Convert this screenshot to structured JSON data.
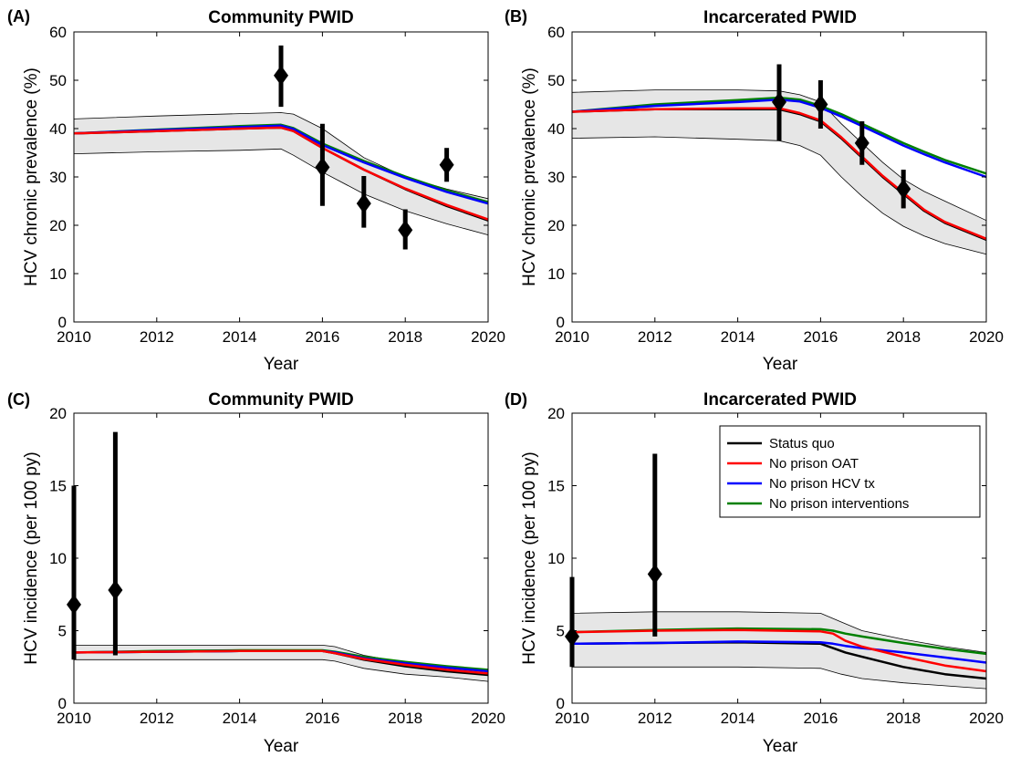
{
  "colors": {
    "status_quo": "#000000",
    "no_prison_oat": "#ff0000",
    "no_prison_hcv_tx": "#0000ff",
    "no_prison_interventions": "#008000",
    "uncertainty_band": "#e6e6e6",
    "data_marker": "#000000"
  },
  "legend": {
    "entries": [
      "Status quo",
      "No prison OAT",
      "No prison HCV tx",
      "No prison interventions"
    ]
  },
  "chart_data": [
    {
      "panel_label": "(A)",
      "title": "Community PWID",
      "type": "line",
      "xlabel": "Year",
      "ylabel": "HCV chronic prevalence (%)",
      "xlim": [
        2010,
        2020
      ],
      "ylim": [
        0,
        60
      ],
      "xticks": [
        2010,
        2012,
        2014,
        2016,
        2018,
        2020
      ],
      "yticks": [
        0,
        10,
        20,
        30,
        40,
        50,
        60
      ],
      "band": {
        "x": [
          2010,
          2012,
          2014,
          2015,
          2015.3,
          2016,
          2017,
          2018,
          2019,
          2020
        ],
        "lower": [
          34.8,
          35.2,
          35.5,
          35.8,
          34.5,
          31.0,
          26.5,
          23.0,
          20.3,
          18.0
        ],
        "upper": [
          42.0,
          42.6,
          43.1,
          43.3,
          43.0,
          40.0,
          34.0,
          30.0,
          27.5,
          25.5
        ]
      },
      "series": [
        {
          "name": "Status quo",
          "x": [
            2010,
            2012,
            2014,
            2015,
            2015.3,
            2016,
            2017,
            2018,
            2019,
            2020
          ],
          "y": [
            39.0,
            39.5,
            40.0,
            40.2,
            39.5,
            36.0,
            31.5,
            27.5,
            24.0,
            21.0
          ]
        },
        {
          "name": "No prison OAT",
          "x": [
            2010,
            2012,
            2014,
            2015,
            2015.3,
            2016,
            2017,
            2018,
            2019,
            2020
          ],
          "y": [
            39.0,
            39.5,
            40.0,
            40.2,
            39.5,
            36.0,
            31.5,
            27.6,
            24.2,
            21.2
          ]
        },
        {
          "name": "No prison HCV tx",
          "x": [
            2010,
            2012,
            2014,
            2015,
            2015.3,
            2016,
            2017,
            2018,
            2019,
            2020
          ],
          "y": [
            39.0,
            39.7,
            40.3,
            40.6,
            39.9,
            36.6,
            33.0,
            29.8,
            26.9,
            24.5
          ]
        },
        {
          "name": "No prison interventions",
          "x": [
            2010,
            2012,
            2014,
            2015,
            2015.3,
            2016,
            2017,
            2018,
            2019,
            2020
          ],
          "y": [
            39.0,
            39.8,
            40.5,
            40.8,
            40.1,
            36.9,
            33.3,
            30.1,
            27.2,
            24.8
          ]
        }
      ],
      "observations": [
        {
          "x": 2015,
          "y": 51,
          "low": 44.5,
          "high": 57.2
        },
        {
          "x": 2016,
          "y": 32,
          "low": 24.0,
          "high": 41.0
        },
        {
          "x": 2017,
          "y": 24.5,
          "low": 19.5,
          "high": 30.2
        },
        {
          "x": 2018,
          "y": 19,
          "low": 15.0,
          "high": 23.3
        },
        {
          "x": 2019,
          "y": 32.5,
          "low": 29.0,
          "high": 36.0
        }
      ]
    },
    {
      "panel_label": "(B)",
      "title": "Incarcerated PWID",
      "type": "line",
      "xlabel": "Year",
      "ylabel": "HCV chronic prevalence (%)",
      "xlim": [
        2010,
        2020
      ],
      "ylim": [
        0,
        60
      ],
      "xticks": [
        2010,
        2012,
        2014,
        2016,
        2018,
        2020
      ],
      "yticks": [
        0,
        10,
        20,
        30,
        40,
        50,
        60
      ],
      "band": {
        "x": [
          2010,
          2012,
          2014,
          2015,
          2015.5,
          2016,
          2016.5,
          2017,
          2017.5,
          2018,
          2018.5,
          2019,
          2020
        ],
        "lower": [
          38.0,
          38.3,
          37.8,
          37.5,
          36.5,
          34.5,
          30.0,
          26.0,
          22.5,
          19.8,
          17.8,
          16.2,
          14.0
        ],
        "upper": [
          47.5,
          48.0,
          48.0,
          47.8,
          47.0,
          45.5,
          41.0,
          37.0,
          33.0,
          29.5,
          27.0,
          25.0,
          21.0
        ]
      },
      "series": [
        {
          "name": "Status quo",
          "x": [
            2010,
            2012,
            2014,
            2015,
            2015.5,
            2016,
            2016.5,
            2017,
            2017.5,
            2018,
            2018.5,
            2019,
            2020
          ],
          "y": [
            43.5,
            44.0,
            44.0,
            44.0,
            43.0,
            41.5,
            38.0,
            34.0,
            30.0,
            26.5,
            23.0,
            20.5,
            17.0
          ]
        },
        {
          "name": "No prison OAT",
          "x": [
            2010,
            2012,
            2014,
            2015,
            2015.5,
            2016,
            2016.5,
            2017,
            2017.5,
            2018,
            2018.5,
            2019,
            2020
          ],
          "y": [
            43.5,
            44.0,
            44.2,
            44.2,
            43.2,
            41.7,
            38.2,
            34.2,
            30.2,
            26.7,
            23.2,
            20.7,
            17.2
          ]
        },
        {
          "name": "No prison HCV tx",
          "x": [
            2010,
            2012,
            2014,
            2015,
            2015.5,
            2016,
            2016.5,
            2017,
            2017.5,
            2018,
            2018.5,
            2019,
            2020
          ],
          "y": [
            43.5,
            44.7,
            45.5,
            46.0,
            45.6,
            44.3,
            42.5,
            40.5,
            38.5,
            36.5,
            34.7,
            33.0,
            30.0
          ]
        },
        {
          "name": "No prison interventions",
          "x": [
            2010,
            2012,
            2014,
            2015,
            2015.5,
            2016,
            2016.5,
            2017,
            2017.5,
            2018,
            2018.5,
            2019,
            2020
          ],
          "y": [
            43.5,
            45.0,
            45.9,
            46.4,
            46.0,
            44.7,
            43.0,
            41.0,
            39.0,
            37.0,
            35.2,
            33.5,
            30.7
          ]
        }
      ],
      "observations": [
        {
          "x": 2015,
          "y": 45.5,
          "low": 37.5,
          "high": 53.3
        },
        {
          "x": 2016,
          "y": 45,
          "low": 40.0,
          "high": 50.0
        },
        {
          "x": 2017,
          "y": 37,
          "low": 32.5,
          "high": 41.5
        },
        {
          "x": 2018,
          "y": 27.5,
          "low": 23.5,
          "high": 31.5
        }
      ]
    },
    {
      "panel_label": "(C)",
      "title": "Community PWID",
      "type": "line",
      "xlabel": "Year",
      "ylabel": "HCV incidence (per 100 py)",
      "xlim": [
        2010,
        2020
      ],
      "ylim": [
        0,
        20
      ],
      "xticks": [
        2010,
        2012,
        2014,
        2016,
        2018,
        2020
      ],
      "yticks": [
        0,
        5,
        10,
        15,
        20
      ],
      "band": {
        "x": [
          2010,
          2012,
          2014,
          2016,
          2016.3,
          2017,
          2018,
          2019,
          2020
        ],
        "lower": [
          3.0,
          3.0,
          3.0,
          3.0,
          2.9,
          2.4,
          2.0,
          1.8,
          1.5
        ],
        "upper": [
          4.0,
          4.0,
          4.0,
          4.0,
          3.9,
          3.3,
          2.8,
          2.5,
          2.3
        ]
      },
      "series": [
        {
          "name": "Status quo",
          "x": [
            2010,
            2012,
            2014,
            2016,
            2016.3,
            2017,
            2018,
            2019,
            2020
          ],
          "y": [
            3.5,
            3.55,
            3.6,
            3.6,
            3.45,
            3.0,
            2.55,
            2.2,
            1.95
          ]
        },
        {
          "name": "No prison OAT",
          "x": [
            2010,
            2012,
            2014,
            2016,
            2016.3,
            2017,
            2018,
            2019,
            2020
          ],
          "y": [
            3.5,
            3.55,
            3.6,
            3.6,
            3.45,
            3.05,
            2.65,
            2.3,
            2.05
          ]
        },
        {
          "name": "No prison HCV tx",
          "x": [
            2010,
            2012,
            2014,
            2016,
            2016.3,
            2017,
            2018,
            2019,
            2020
          ],
          "y": [
            3.5,
            3.55,
            3.6,
            3.6,
            3.5,
            3.1,
            2.75,
            2.45,
            2.2
          ]
        },
        {
          "name": "No prison interventions",
          "x": [
            2010,
            2012,
            2014,
            2016,
            2016.3,
            2017,
            2018,
            2019,
            2020
          ],
          "y": [
            3.5,
            3.6,
            3.65,
            3.65,
            3.55,
            3.2,
            2.85,
            2.55,
            2.3
          ]
        }
      ],
      "observations": [
        {
          "x": 2010,
          "y": 6.8,
          "low": 3.0,
          "high": 15.0
        },
        {
          "x": 2011,
          "y": 7.8,
          "low": 3.3,
          "high": 18.7
        }
      ]
    },
    {
      "panel_label": "(D)",
      "title": "Incarcerated PWID",
      "type": "line",
      "xlabel": "Year",
      "ylabel": "HCV incidence (per 100 py)",
      "xlim": [
        2010,
        2020
      ],
      "ylim": [
        0,
        20
      ],
      "xticks": [
        2010,
        2012,
        2014,
        2016,
        2018,
        2020
      ],
      "yticks": [
        0,
        5,
        10,
        15,
        20
      ],
      "legend_position": "top-right",
      "band": {
        "x": [
          2010,
          2012,
          2014,
          2016,
          2016.5,
          2017,
          2018,
          2019,
          2020
        ],
        "lower": [
          2.5,
          2.5,
          2.5,
          2.4,
          2.0,
          1.7,
          1.4,
          1.2,
          1.0
        ],
        "upper": [
          6.2,
          6.3,
          6.3,
          6.2,
          5.6,
          5.0,
          4.4,
          3.9,
          3.5
        ]
      },
      "series": [
        {
          "name": "Status quo",
          "x": [
            2010,
            2012,
            2014,
            2016,
            2016.3,
            2016.6,
            2017,
            2018,
            2019,
            2020
          ],
          "y": [
            4.1,
            4.15,
            4.2,
            4.1,
            3.8,
            3.5,
            3.2,
            2.5,
            2.0,
            1.7
          ]
        },
        {
          "name": "No prison OAT",
          "x": [
            2010,
            2012,
            2014,
            2016,
            2016.3,
            2016.6,
            2017,
            2018,
            2019,
            2020
          ],
          "y": [
            4.9,
            5.0,
            5.05,
            4.95,
            4.8,
            4.3,
            3.9,
            3.2,
            2.6,
            2.2
          ]
        },
        {
          "name": "No prison HCV tx",
          "x": [
            2010,
            2012,
            2014,
            2016,
            2016.3,
            2016.6,
            2017,
            2018,
            2019,
            2020
          ],
          "y": [
            4.1,
            4.15,
            4.25,
            4.2,
            4.1,
            3.95,
            3.8,
            3.5,
            3.15,
            2.8
          ]
        },
        {
          "name": "No prison interventions",
          "x": [
            2010,
            2012,
            2014,
            2016,
            2016.3,
            2016.6,
            2017,
            2018,
            2019,
            2020
          ],
          "y": [
            4.9,
            5.05,
            5.15,
            5.1,
            5.0,
            4.8,
            4.6,
            4.15,
            3.75,
            3.4
          ]
        }
      ],
      "observations": [
        {
          "x": 2010,
          "y": 4.6,
          "low": 2.5,
          "high": 8.7
        },
        {
          "x": 2012,
          "y": 8.9,
          "low": 4.6,
          "high": 17.2
        }
      ]
    }
  ]
}
